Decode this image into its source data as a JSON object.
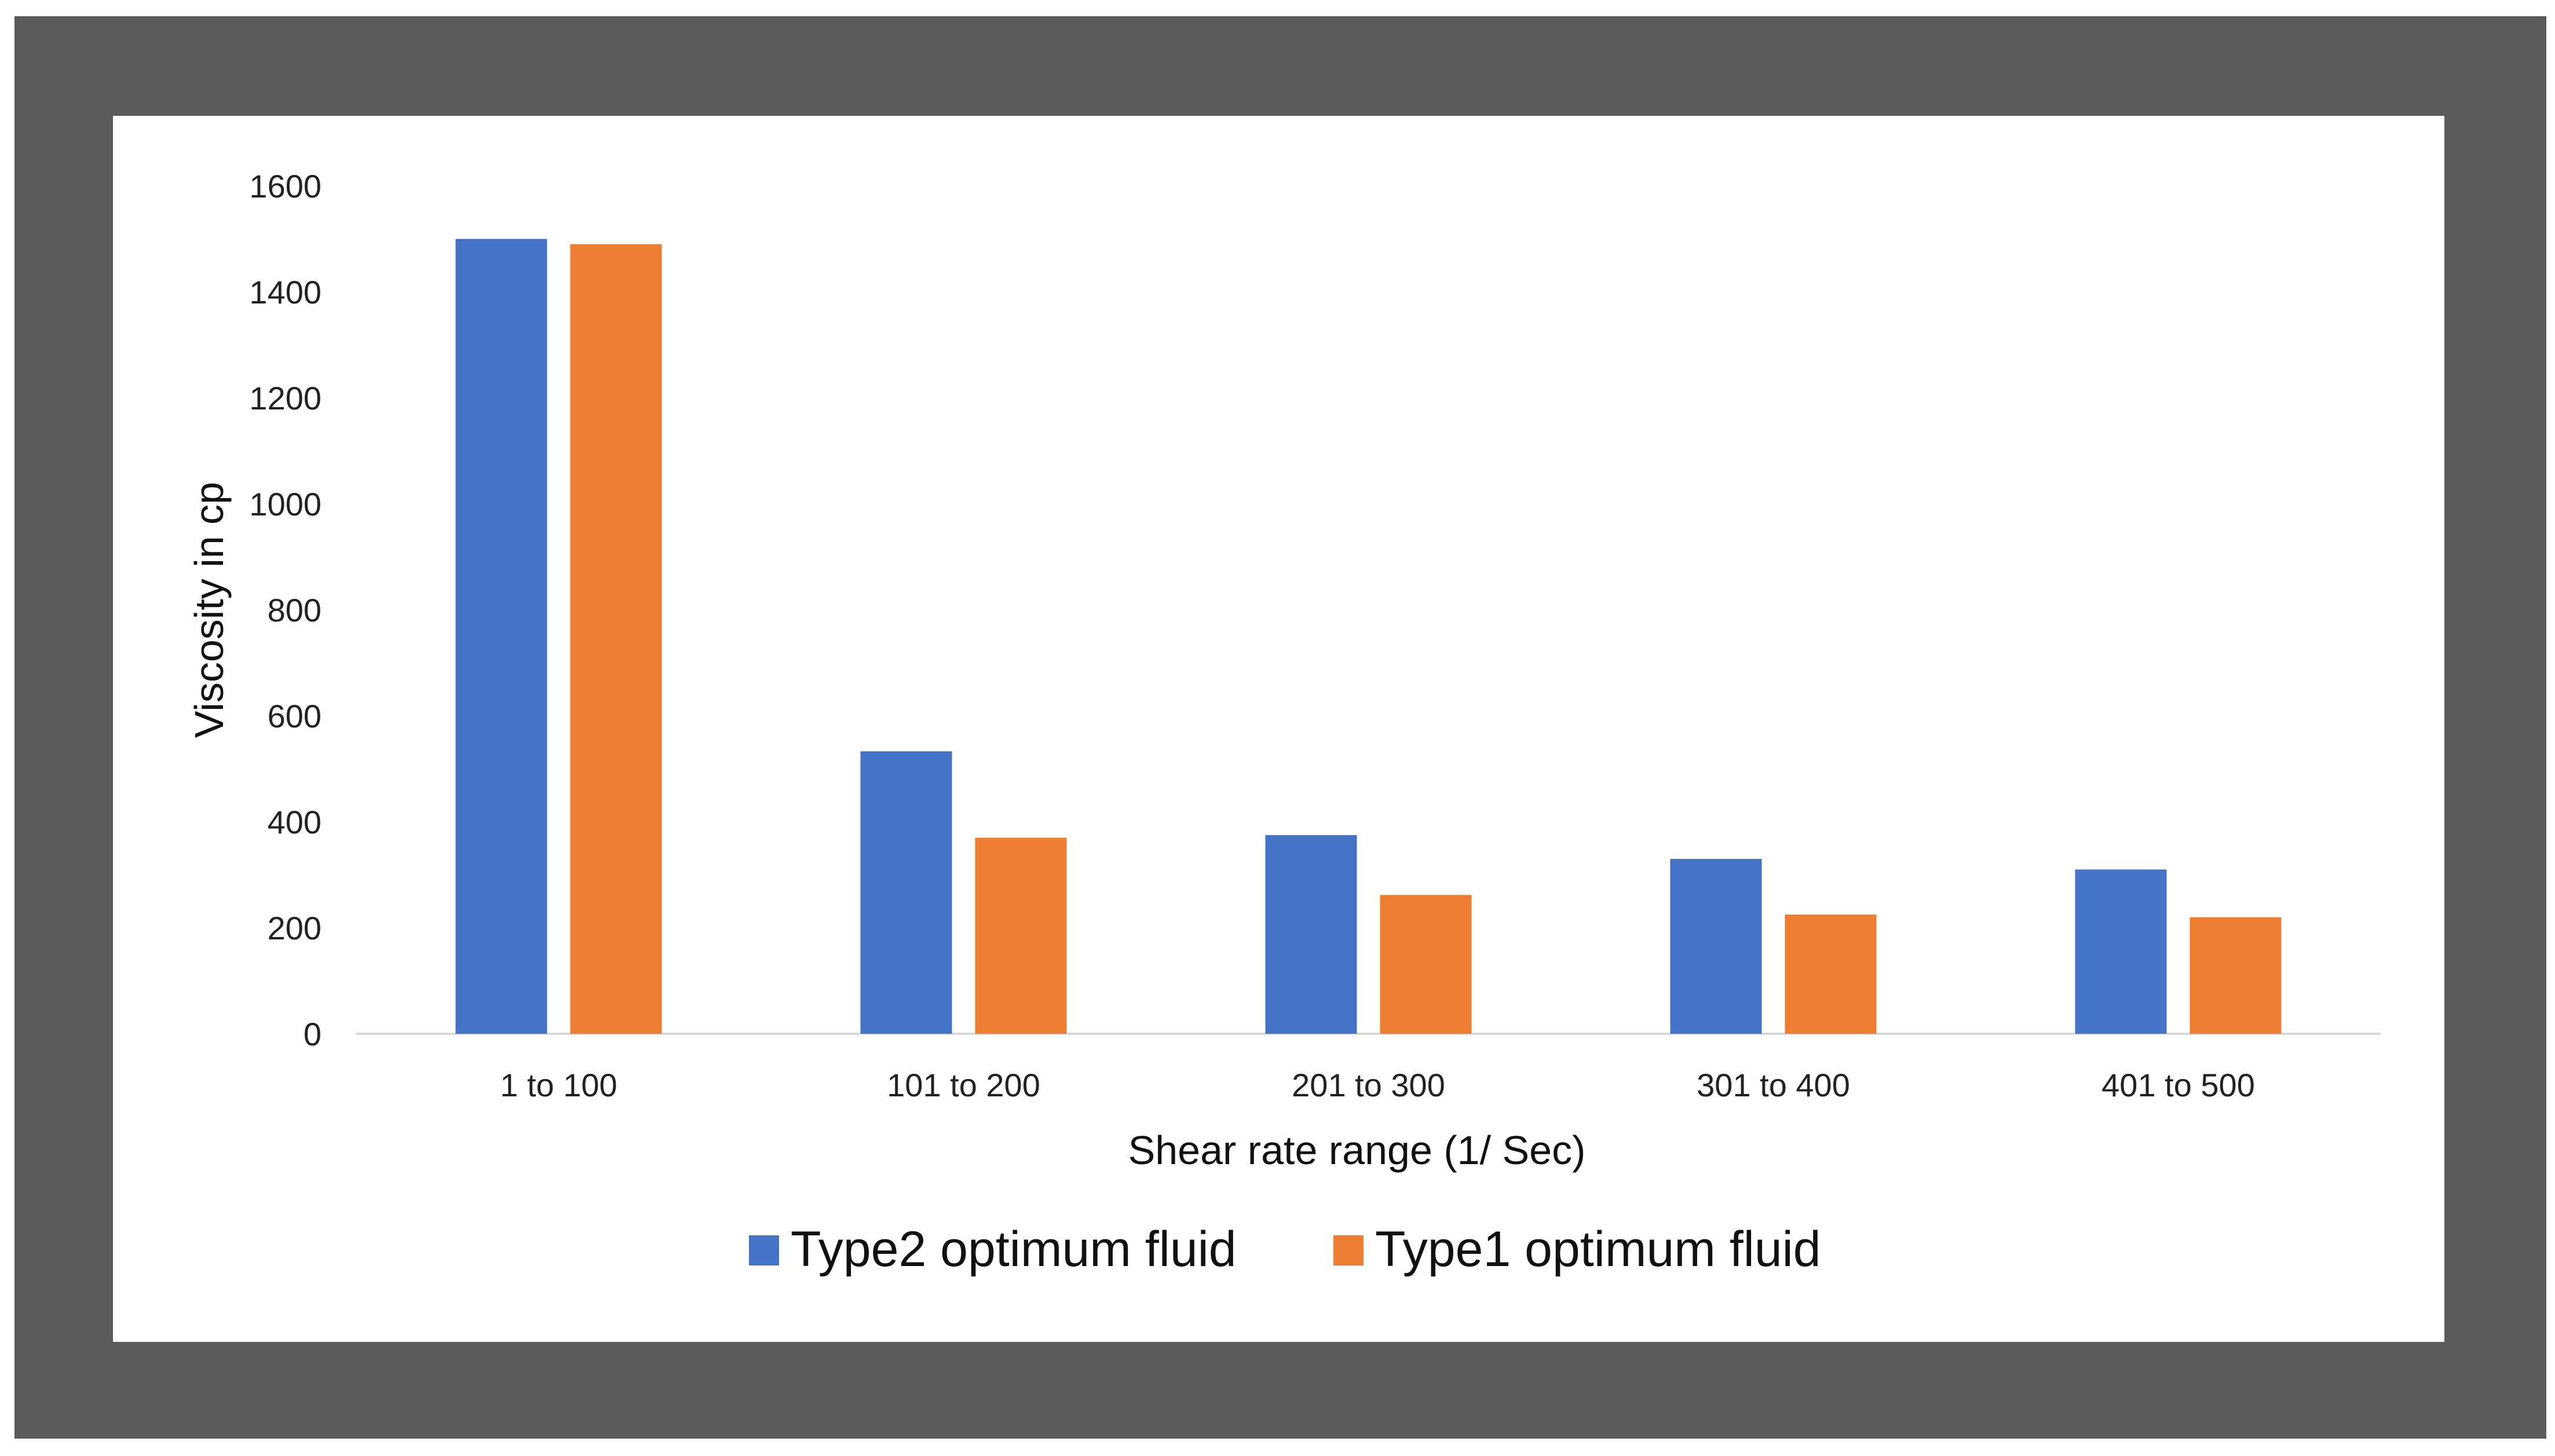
{
  "chart_data": {
    "type": "bar",
    "title": "",
    "xlabel": "Shear rate range (1/ Sec)",
    "ylabel": "Viscosity in cp",
    "categories": [
      "1 to 100",
      "101 to 200",
      "201 to 300",
      "301 to 400",
      "401 to 500"
    ],
    "series": [
      {
        "name": "Type2 optimum fluid",
        "color": "#4472c4",
        "values": [
          1500,
          533,
          375,
          330,
          310
        ]
      },
      {
        "name": "Type1 optimum fluid",
        "color": "#ed7d31",
        "values": [
          1490,
          370,
          262,
          225,
          220
        ]
      }
    ],
    "ylim": [
      0,
      1600
    ],
    "yticks": [
      "0",
      "200",
      "400",
      "600",
      "800",
      "1000",
      "1200",
      "1400",
      "1600"
    ],
    "grid": false,
    "legend_position": "bottom"
  }
}
